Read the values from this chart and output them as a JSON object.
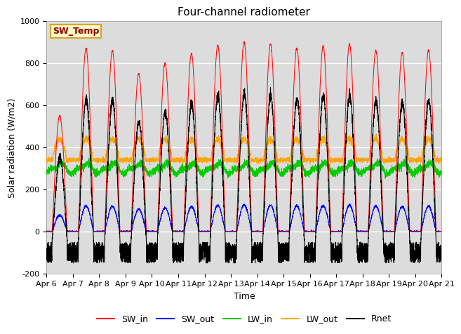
{
  "title": "Four-channel radiometer",
  "xlabel": "Time",
  "ylabel": "Solar radiation (W/m2)",
  "ylim": [
    -200,
    1000
  ],
  "n_days": 15,
  "annotation_text": "SW_Temp",
  "annotation_color": "#8B0000",
  "annotation_bg": "#FFFACD",
  "annotation_edge": "#DAA520",
  "colors": {
    "SW_in": "#FF0000",
    "SW_out": "#0000FF",
    "LW_in": "#00CC00",
    "LW_out": "#FFA500",
    "Rnet": "#000000"
  },
  "legend_labels": [
    "SW_in",
    "SW_out",
    "LW_in",
    "LW_out",
    "Rnet"
  ],
  "x_tick_labels": [
    "Apr 6",
    "Apr 7",
    "Apr 8",
    "Apr 9",
    "Apr 10",
    "Apr 11",
    "Apr 12",
    "Apr 13",
    "Apr 14",
    "Apr 15",
    "Apr 16",
    "Apr 17",
    "Apr 18",
    "Apr 19",
    "Apr 20",
    "Apr 21"
  ],
  "bg_color": "#DCDCDC",
  "grid_color": "#FFFFFF",
  "title_fontsize": 11,
  "axis_fontsize": 9,
  "tick_fontsize": 8,
  "legend_fontsize": 9,
  "sw_in_peaks": [
    550,
    870,
    860,
    750,
    800,
    845,
    885,
    900,
    890,
    870,
    880,
    890,
    860,
    850,
    860
  ],
  "sw_out_ratio": 0.14,
  "lw_in_base": 300,
  "lw_in_amp": 20,
  "lw_out_day_base": 360,
  "lw_out_day_amp": 80,
  "lw_out_night_base": 340,
  "rnet_night_low": -150,
  "rnet_night_high": -50
}
